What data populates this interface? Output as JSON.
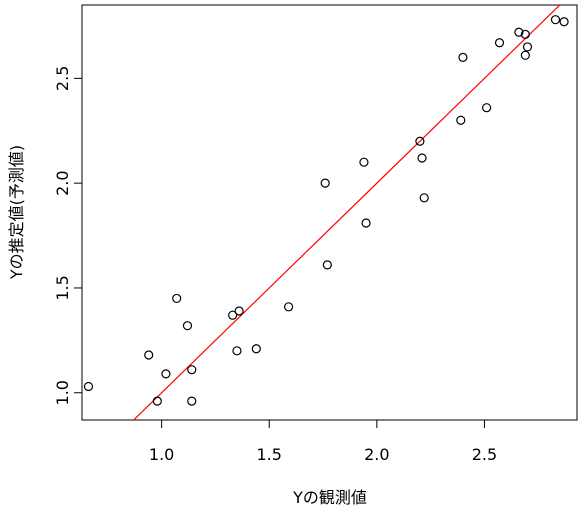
{
  "chart_data": {
    "type": "scatter",
    "x_label": "Yの観測値",
    "y_label": "Yの推定値(予測値)",
    "x": [
      0.66,
      0.94,
      0.98,
      1.02,
      1.07,
      1.12,
      1.14,
      1.14,
      1.33,
      1.36,
      1.35,
      1.44,
      1.59,
      1.76,
      1.77,
      1.94,
      1.95,
      2.2,
      2.21,
      2.22,
      2.39,
      2.4,
      2.51,
      2.57,
      2.66,
      2.69,
      2.69,
      2.7,
      2.83,
      2.87
    ],
    "values": [
      1.03,
      1.18,
      0.96,
      1.09,
      1.45,
      1.32,
      0.96,
      1.11,
      1.37,
      1.39,
      1.2,
      1.21,
      1.41,
      2.0,
      1.61,
      2.1,
      1.81,
      2.2,
      2.12,
      1.93,
      2.3,
      2.6,
      2.36,
      2.67,
      2.72,
      2.71,
      2.61,
      2.65,
      2.78,
      2.77
    ],
    "color": "#000000",
    "reference_line": {
      "intercept": 0,
      "slope": 1,
      "color": "#ff0000"
    },
    "xlim": [
      0.63,
      2.93
    ],
    "ylim": [
      0.87,
      2.85
    ],
    "xticks": [
      {
        "value": 1,
        "label": "1.0"
      },
      {
        "value": 1.5,
        "label": "1.5"
      },
      {
        "value": 2,
        "label": "2.0"
      },
      {
        "value": 2.5,
        "label": "2.5"
      }
    ],
    "yticks": [
      {
        "value": 1,
        "label": "1.0"
      },
      {
        "value": 1.5,
        "label": "1.5"
      },
      {
        "value": 2,
        "label": "2.0"
      },
      {
        "value": 2.5,
        "label": "2.5"
      }
    ]
  }
}
